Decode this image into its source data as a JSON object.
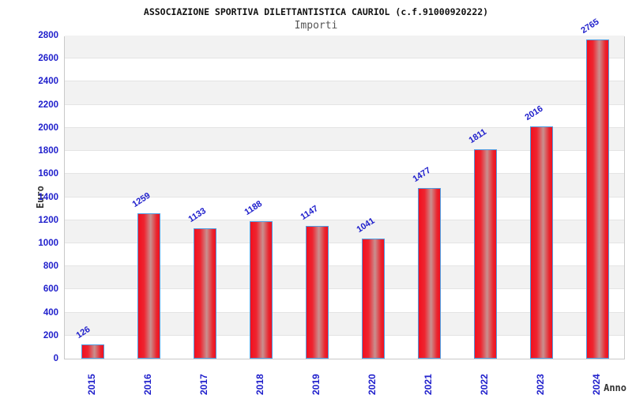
{
  "header": {
    "title": "ASSOCIAZIONE SPORTIVA DILETTANTISTICA CAURIOL (c.f.91000920222)",
    "subtitle": "Importi"
  },
  "chart_data": {
    "type": "bar",
    "title": "ASSOCIAZIONE SPORTIVA DILETTANTISTICA CAURIOL (c.f.91000920222)",
    "subtitle": "Importi",
    "categories": [
      "2015",
      "2016",
      "2017",
      "2018",
      "2019",
      "2020",
      "2021",
      "2022",
      "2023",
      "2024"
    ],
    "values": [
      126,
      1259,
      1133,
      1188,
      1147,
      1041,
      1477,
      1811,
      2016,
      2765
    ],
    "xlabel": "Anno",
    "ylabel": "Euro",
    "ylim": [
      0,
      2800
    ],
    "ytick_step": 200,
    "grid": "horizontal alternating bands",
    "legend_position": "none",
    "colors": {
      "bar_fill": "#ee1c25",
      "bar_highlight": "#c9908f",
      "bar_border": "#4f9be0",
      "label_blue": "#2020cc",
      "band_gray": "#f2f2f2",
      "gridline": "#e4e4e4",
      "axis_title": "#333333",
      "title_color": "#111111",
      "subtitle_color": "#555555"
    }
  }
}
